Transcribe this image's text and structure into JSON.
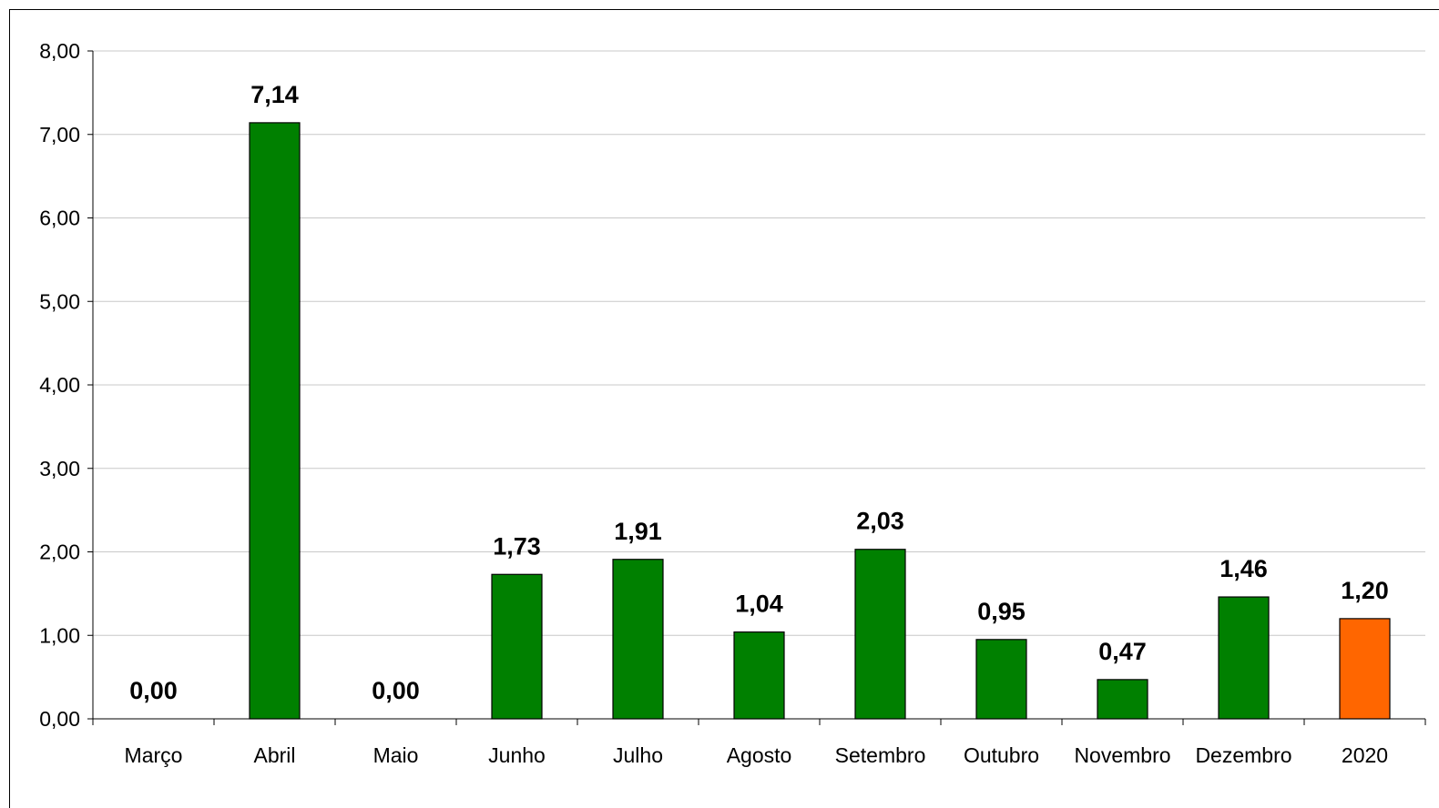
{
  "chart_data": {
    "type": "bar",
    "categories": [
      "Março",
      "Abril",
      "Maio",
      "Junho",
      "Julho",
      "Agosto",
      "Setembro",
      "Outubro",
      "Novembro",
      "Dezembro",
      "2020"
    ],
    "values": [
      0.0,
      7.14,
      0.0,
      1.73,
      1.91,
      1.04,
      2.03,
      0.95,
      0.47,
      1.46,
      1.2
    ],
    "data_labels": [
      "0,00",
      "7,14",
      "0,00",
      "1,73",
      "1,91",
      "1,04",
      "2,03",
      "0,95",
      "0,47",
      "1,46",
      "1,20"
    ],
    "bar_colors": [
      "#008000",
      "#008000",
      "#008000",
      "#008000",
      "#008000",
      "#008000",
      "#008000",
      "#008000",
      "#008000",
      "#008000",
      "#FF6600"
    ],
    "y_ticks": [
      0,
      1,
      2,
      3,
      4,
      5,
      6,
      7,
      8
    ],
    "y_tick_labels": [
      "0,00",
      "1,00",
      "2,00",
      "3,00",
      "4,00",
      "5,00",
      "6,00",
      "7,00",
      "8,00"
    ],
    "ylim": [
      0,
      8
    ],
    "title": "",
    "xlabel": "",
    "ylabel": "",
    "grid": true,
    "legend": "none"
  }
}
